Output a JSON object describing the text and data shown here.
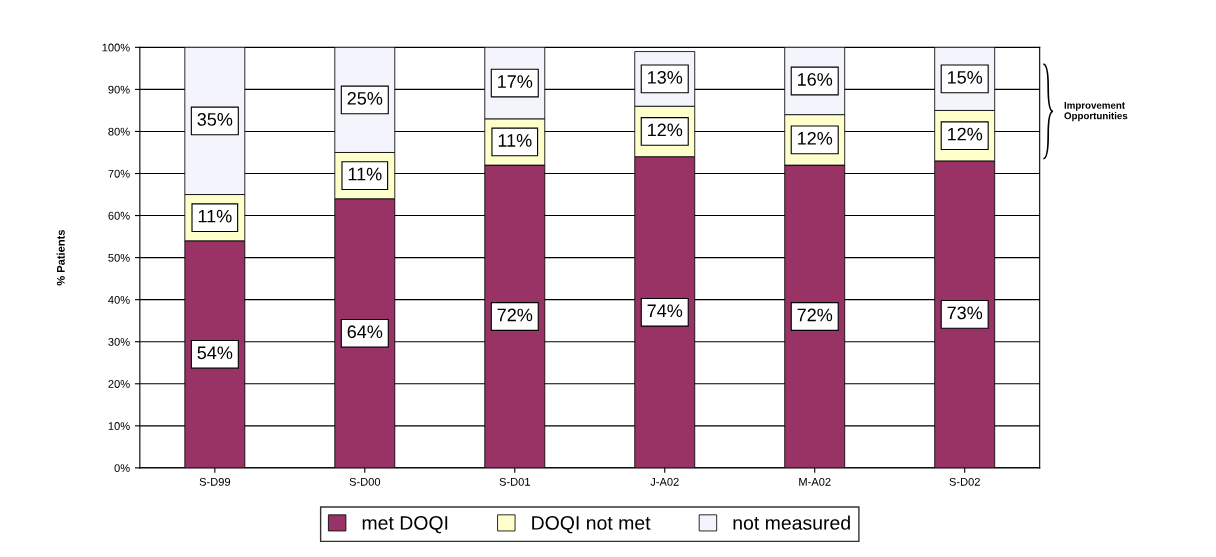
{
  "chart_data": {
    "type": "bar",
    "stacked": true,
    "ylabel": "% Patients",
    "categories": [
      "S-D99",
      "S-D00",
      "S-D01",
      "J-A02",
      "M-A02",
      "S-D02"
    ],
    "series": [
      {
        "name": "met DOQI",
        "color": "#993366",
        "values": [
          54,
          64,
          72,
          74,
          72,
          73
        ],
        "value_labels": [
          "54%",
          "64%",
          "72%",
          "74%",
          "72%",
          "73%"
        ]
      },
      {
        "name": "DOQI not met",
        "color": "#ffffcc",
        "values": [
          11,
          11,
          11,
          12,
          12,
          12
        ],
        "value_labels": [
          "11%",
          "11%",
          "11%",
          "12%",
          "12%",
          "12%"
        ]
      },
      {
        "name": "not measured",
        "color": "#f4f4fc",
        "values": [
          35,
          25,
          17,
          13,
          16,
          15
        ],
        "value_labels": [
          "35%",
          "25%",
          "17%",
          "13%",
          "16%",
          "15%"
        ]
      }
    ],
    "ylim": [
      0,
      100
    ],
    "yticks": [
      {
        "value": 0,
        "label": "0%"
      },
      {
        "value": 10,
        "label": "10%"
      },
      {
        "value": 20,
        "label": "20%"
      },
      {
        "value": 30,
        "label": "30%"
      },
      {
        "value": 40,
        "label": "40%"
      },
      {
        "value": 50,
        "label": "50%"
      },
      {
        "value": 60,
        "label": "60%"
      },
      {
        "value": 70,
        "label": "70%"
      },
      {
        "value": 80,
        "label": "80%"
      },
      {
        "value": 90,
        "label": "90%"
      },
      {
        "value": 100,
        "label": "100%"
      }
    ],
    "grid": "y",
    "legend": "bottom",
    "annotations": [
      "Improvement Opportunities"
    ]
  }
}
